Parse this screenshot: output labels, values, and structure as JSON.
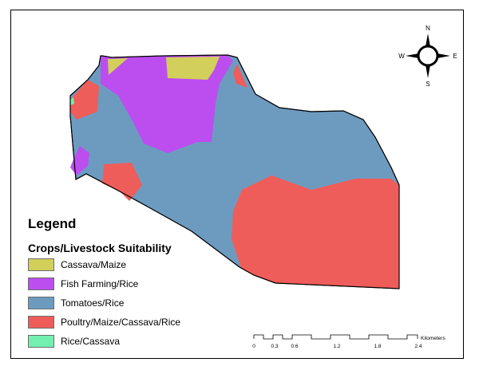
{
  "legend": {
    "title": "Legend",
    "subtitle": "Crops/Livestock Suitability",
    "items": [
      {
        "label": "Cassava/Maize",
        "color": "#d2cf5a"
      },
      {
        "label": "Fish Farming/Rice",
        "color": "#bc4ef0"
      },
      {
        "label": "Tomatoes/Rice",
        "color": "#6d9bc0"
      },
      {
        "label": "Poultry/Maize/Cassava/Rice",
        "color": "#ef5d5a"
      },
      {
        "label": "Rice/Cassava",
        "color": "#73f0b0"
      }
    ]
  },
  "compass": {
    "north": "N",
    "south": "S",
    "east": "E",
    "west": "W"
  },
  "scale_bar": {
    "unit": "Kilometers",
    "ticks": [
      "0",
      "0.3",
      "0.6",
      "1.2",
      "1.8",
      "2.4"
    ]
  },
  "map": {
    "zones": [
      "Cassava/Maize",
      "Fish Farming/Rice",
      "Tomatoes/Rice",
      "Poultry/Maize/Cassava/Rice",
      "Rice/Cassava"
    ]
  }
}
